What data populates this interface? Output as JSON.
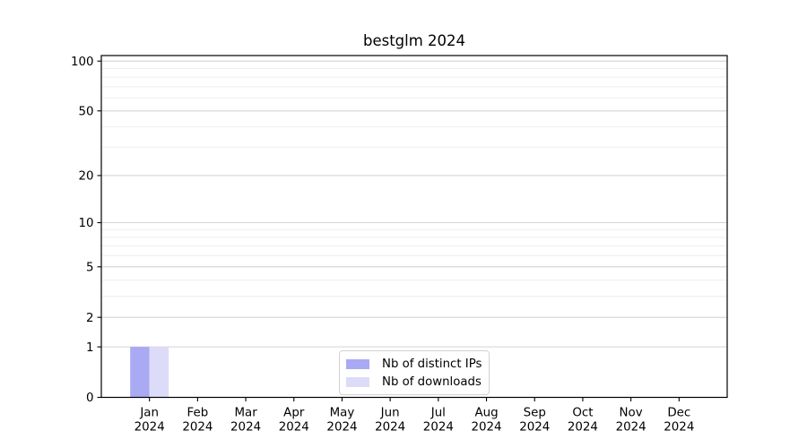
{
  "chart_data": {
    "type": "bar",
    "title": "bestglm 2024",
    "categories": [
      "Jan 2024",
      "Feb 2024",
      "Mar 2024",
      "Apr 2024",
      "May 2024",
      "Jun 2024",
      "Jul 2024",
      "Aug 2024",
      "Sep 2024",
      "Oct 2024",
      "Nov 2024",
      "Dec 2024"
    ],
    "series": [
      {
        "name": "Nb of distinct IPs",
        "color": "#a9a9f4",
        "values": [
          1,
          0,
          0,
          0,
          0,
          0,
          0,
          0,
          0,
          0,
          0,
          0
        ]
      },
      {
        "name": "Nb of downloads",
        "color": "#dcdcf8",
        "values": [
          1,
          0,
          0,
          0,
          0,
          0,
          0,
          0,
          0,
          0,
          0,
          0
        ]
      }
    ],
    "yscale": "log1p",
    "ylim": [
      0,
      108
    ],
    "yticks": [
      0,
      1,
      2,
      5,
      10,
      20,
      50,
      100
    ],
    "grid": {
      "major_values": [
        1,
        2,
        5,
        10,
        20,
        50,
        100
      ],
      "minor_values": [
        3,
        4,
        6,
        7,
        8,
        9,
        30,
        40,
        60,
        70,
        80,
        90
      ],
      "major_color": "#d4d4d4",
      "minor_color": "#eeeeee"
    },
    "legend": {
      "position": "bottom-center",
      "entries": [
        "Nb of distinct IPs",
        "Nb of downloads"
      ]
    },
    "axis_color": "#000000",
    "text_color": "#000000",
    "background": "#ffffff"
  }
}
